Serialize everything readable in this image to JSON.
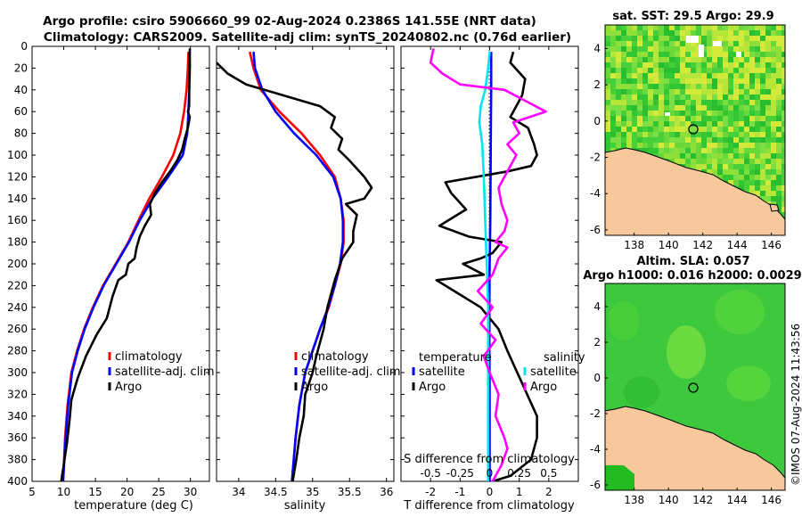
{
  "title": {
    "line1": "Argo profile: csiro 5906660_99 02-Aug-2024 0.2386S 141.55E (NRT data)",
    "line2": "Climatology: CARS2009. Satellite-adj clim: synTS_20240802.nc (0.76d earlier)"
  },
  "watermark": "©IMOS 07-Aug-2024 11:43:56",
  "colors": {
    "climatology": "#ff0000",
    "satellite": "#0000ff",
    "argo": "#000000",
    "sal_diff": "#ff00ff",
    "sat_sal_diff": "#00e5ee",
    "land": "#f7c89b",
    "ocean_green": "#33c833"
  },
  "chart_data": [
    {
      "type": "line",
      "name": "temperature-profile",
      "xlabel": "temperature (deg C)",
      "ylabel": "depth",
      "xlim": [
        5,
        33
      ],
      "ylim": [
        400,
        0
      ],
      "xticks": [
        5,
        10,
        15,
        20,
        25,
        30
      ],
      "yticks": [
        0,
        20,
        40,
        60,
        80,
        100,
        120,
        140,
        160,
        180,
        200,
        220,
        240,
        260,
        280,
        300,
        320,
        340,
        360,
        380,
        400
      ],
      "legend": [
        "climatology",
        "satellite-adj. clim",
        "Argo"
      ],
      "series": [
        {
          "name": "climatology",
          "color": "climatology",
          "x": [
            29.7,
            29.6,
            29.4,
            29.0,
            28.4,
            27.3,
            25.5,
            23.5,
            21.8,
            20.2,
            18.2,
            16.2,
            14.6,
            13.2,
            12.1,
            11.2,
            10.6,
            10.2,
            9.9
          ],
          "y": [
            5,
            20,
            40,
            60,
            80,
            100,
            120,
            140,
            160,
            180,
            200,
            220,
            240,
            260,
            280,
            300,
            330,
            360,
            400
          ]
        },
        {
          "name": "satellite-adj. clim",
          "color": "satellite",
          "x": [
            29.8,
            29.8,
            29.8,
            29.7,
            29.5,
            28.8,
            26.5,
            24.0,
            22.0,
            20.3,
            18.3,
            16.3,
            14.7,
            13.3,
            12.2,
            11.3,
            10.7,
            10.3,
            9.9
          ],
          "y": [
            5,
            20,
            40,
            60,
            80,
            100,
            120,
            140,
            160,
            180,
            200,
            220,
            240,
            260,
            280,
            300,
            330,
            360,
            400
          ]
        },
        {
          "name": "Argo",
          "color": "argo",
          "x": [
            29.9,
            29.9,
            29.8,
            29.8,
            29.6,
            29.9,
            29.6,
            29.1,
            28.7,
            27.9,
            26.8,
            25.5,
            24.4,
            23.6,
            23.8,
            22.8,
            22.0,
            21.5,
            21.2,
            20.2,
            19.8,
            18.6,
            17.7,
            16.8,
            15.2,
            13.5,
            12.2,
            11.2,
            10.9,
            10.5,
            10.0,
            9.6
          ],
          "y": [
            2,
            20,
            40,
            55,
            60,
            65,
            75,
            85,
            95,
            105,
            115,
            125,
            135,
            145,
            155,
            165,
            175,
            185,
            195,
            200,
            210,
            215,
            230,
            250,
            265,
            285,
            305,
            325,
            345,
            365,
            385,
            400
          ]
        }
      ]
    },
    {
      "type": "line",
      "name": "salinity-profile",
      "xlabel": "salinity",
      "xlim": [
        33.7,
        36.1
      ],
      "ylim": [
        400,
        0
      ],
      "xticks": [
        34,
        34.5,
        35,
        35.5,
        36
      ],
      "legend": [
        "climatology",
        "satellite-adj. clim",
        "Argo"
      ],
      "series": [
        {
          "name": "climatology",
          "color": "climatology",
          "x": [
            34.15,
            34.2,
            34.3,
            34.55,
            34.85,
            35.1,
            35.3,
            35.38,
            35.42,
            35.42,
            35.38,
            35.3,
            35.22,
            35.1,
            35.0,
            34.9,
            34.82,
            34.77,
            34.72
          ],
          "y": [
            5,
            20,
            40,
            60,
            80,
            100,
            120,
            140,
            160,
            180,
            200,
            220,
            240,
            260,
            280,
            300,
            330,
            360,
            400
          ]
        },
        {
          "name": "satellite-adj. clim",
          "color": "satellite",
          "x": [
            34.2,
            34.22,
            34.32,
            34.5,
            34.75,
            35.05,
            35.28,
            35.38,
            35.41,
            35.41,
            35.37,
            35.3,
            35.21,
            35.1,
            35.0,
            34.9,
            34.82,
            34.77,
            34.72
          ],
          "y": [
            5,
            20,
            40,
            60,
            80,
            100,
            120,
            140,
            160,
            180,
            200,
            220,
            240,
            260,
            280,
            300,
            330,
            360,
            400
          ]
        },
        {
          "name": "Argo",
          "color": "argo",
          "x": [
            33.7,
            33.85,
            34.1,
            34.6,
            35.1,
            35.2,
            35.3,
            35.25,
            35.4,
            35.35,
            35.5,
            35.7,
            35.8,
            35.7,
            35.45,
            35.6,
            35.55,
            35.55,
            35.4,
            35.3,
            35.2,
            35.15,
            35.05,
            35.0,
            34.9,
            34.88,
            34.82,
            34.78,
            34.73
          ],
          "y": [
            15,
            25,
            35,
            45,
            55,
            60,
            65,
            75,
            85,
            95,
            105,
            120,
            130,
            140,
            145,
            155,
            170,
            180,
            195,
            215,
            240,
            260,
            285,
            300,
            320,
            340,
            360,
            380,
            400
          ]
        }
      ]
    },
    {
      "type": "line",
      "name": "difference-profile",
      "xlabel": "T difference from climatology",
      "xlabel_top": "S difference from climatology",
      "xlim": [
        -3.0,
        3.0
      ],
      "ylim": [
        400,
        0
      ],
      "xticks": [
        -2,
        -1,
        0,
        1,
        2
      ],
      "top_ticks": [
        "-0.5",
        "-0.25",
        "0",
        "0.25",
        "0.5"
      ],
      "top_ticks_x": [
        -2,
        -1,
        0,
        1,
        2
      ],
      "legend_headers": [
        "temperature",
        "salinity"
      ],
      "legend_left": [
        "satellite",
        "Argo"
      ],
      "legend_right": [
        "satellite",
        "Argo"
      ],
      "series": [
        {
          "name": "T satellite",
          "color": "satellite",
          "x": [
            0.05,
            0.05,
            0.04,
            0.03,
            0.02,
            0.0,
            -0.01,
            -0.01,
            0.0,
            0.0,
            0.0,
            0.0
          ],
          "y": [
            5,
            40,
            80,
            120,
            160,
            200,
            240,
            280,
            320,
            360,
            380,
            400
          ]
        },
        {
          "name": "T Argo",
          "color": "argo",
          "x": [
            0.8,
            0.7,
            1.2,
            1.1,
            0.9,
            0.7,
            1.3,
            1.5,
            1.6,
            1.4,
            0.6,
            -1.5,
            -1.3,
            -0.8,
            -1.7,
            -0.7,
            0.4,
            0.1,
            -0.3,
            -0.9,
            -0.2,
            -1.8,
            -1.2,
            -0.3,
            0.3,
            0.6,
            1.1,
            1.6,
            1.6,
            1.4,
            0.7,
            0.1
          ],
          "y": [
            5,
            15,
            30,
            45,
            55,
            65,
            75,
            90,
            100,
            110,
            115,
            125,
            135,
            150,
            165,
            175,
            180,
            190,
            195,
            200,
            210,
            215,
            225,
            240,
            260,
            280,
            310,
            340,
            360,
            380,
            395,
            400
          ]
        },
        {
          "name": "S satellite",
          "color": "sat_sal_diff",
          "x": [
            0.0,
            -0.05,
            -0.15,
            -0.3,
            -0.35,
            -0.25,
            -0.2,
            -0.15,
            -0.1,
            -0.05,
            -0.05,
            -0.05,
            -0.05,
            -0.05,
            -0.05
          ],
          "y": [
            5,
            20,
            40,
            55,
            70,
            90,
            120,
            160,
            200,
            240,
            280,
            320,
            360,
            380,
            400
          ]
        },
        {
          "name": "S Argo",
          "color": "sal_diff",
          "x": [
            -1.9,
            -2.0,
            -1.6,
            -1.0,
            0.5,
            1.2,
            1.9,
            0.8,
            1.0,
            0.6,
            0.9,
            0.7,
            0.5,
            0.3,
            0.4,
            0.6,
            0.5,
            0.2,
            0.6,
            0.3,
            0.1,
            -0.4,
            0.1,
            -0.3,
            0.2,
            -0.2,
            0.0,
            0.3,
            0.2,
            0.5,
            0.6,
            0.4,
            0.1
          ],
          "y": [
            2,
            15,
            25,
            35,
            40,
            50,
            60,
            70,
            80,
            90,
            100,
            110,
            120,
            130,
            145,
            160,
            170,
            180,
            185,
            195,
            210,
            225,
            240,
            255,
            270,
            285,
            300,
            320,
            340,
            360,
            370,
            385,
            400
          ]
        }
      ]
    },
    {
      "type": "heatmap",
      "name": "sst-map",
      "title": "sat. SST: 29.5 Argo: 29.9",
      "xticks": [
        138,
        140,
        142,
        144,
        146
      ],
      "yticks": [
        4,
        2,
        0,
        -2,
        -4,
        -6
      ],
      "xlim": [
        136.3,
        146.8
      ],
      "ylim": [
        -6.3,
        5.3
      ],
      "argo_position": {
        "lon": 141.55,
        "lat": -0.2386
      }
    },
    {
      "type": "heatmap",
      "name": "sla-map",
      "title_line1": "Altim. SLA: 0.057",
      "title_line2": "Argo h1000: 0.016 h2000: 0.0029",
      "xticks": [
        138,
        140,
        142,
        144,
        146
      ],
      "yticks": [
        4,
        2,
        0,
        -2,
        -4,
        -6
      ],
      "xlim": [
        136.3,
        146.8
      ],
      "ylim": [
        -6.3,
        5.3
      ],
      "argo_position": {
        "lon": 141.55,
        "lat": -0.2386
      }
    }
  ]
}
